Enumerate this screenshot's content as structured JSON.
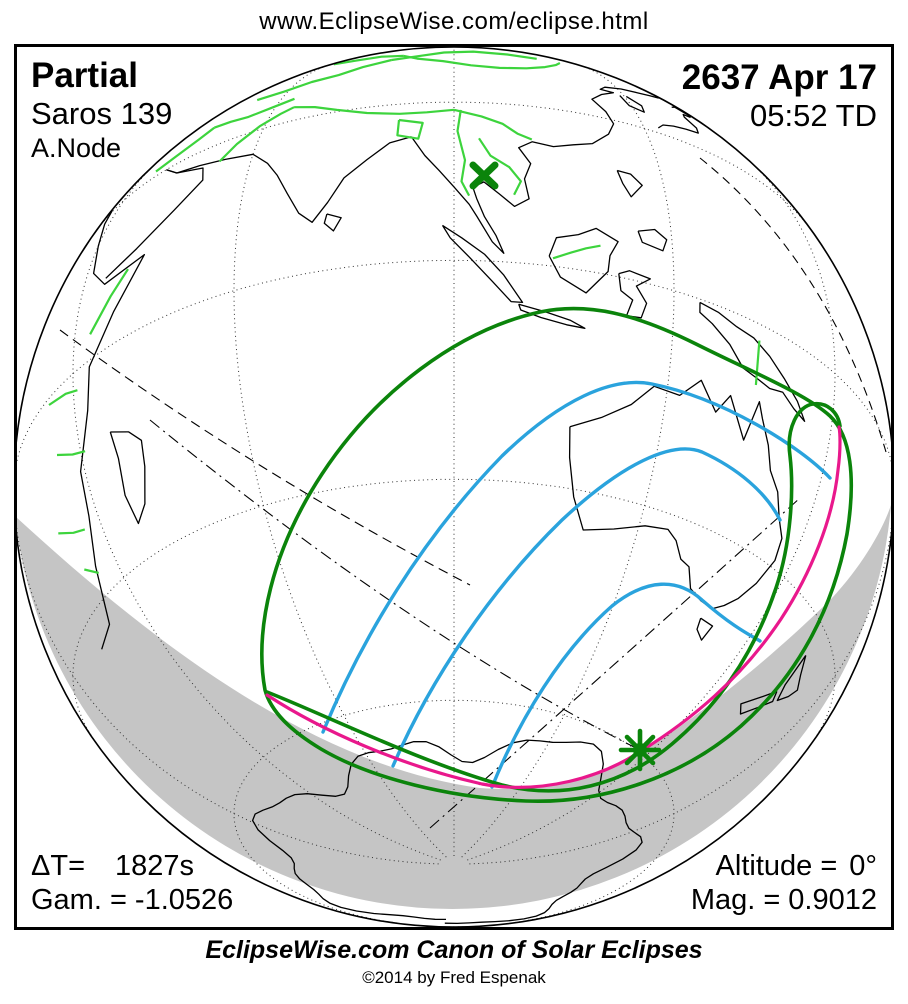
{
  "header": {
    "url": "www.EclipseWise.com/eclipse.html"
  },
  "map": {
    "eclipse_type": "Partial",
    "saros": "Saros 139",
    "node": "A.Node",
    "date": "2637 Apr 17",
    "time": "05:52 TD",
    "delta_t_label": "ΔT=",
    "delta_t_value": "1827s",
    "gamma_label": "Gam. =",
    "gamma_value": "-1.0526",
    "altitude_label": "Altitude =",
    "altitude_value": "0°",
    "magnitude_label": "Mag. =",
    "magnitude_value": "0.9012",
    "markers": {
      "greatest_eclipse": "asterisk",
      "subsolar_point": "x-cross"
    },
    "colors": {
      "coastline": "#000000",
      "political_borders": "#3dd43d",
      "penumbra_limit": "#0b840b",
      "eclipse_curves_blue": "#2aa3dd",
      "sunrise_sunset_curve": "#e9188c",
      "night_shading": "#c5c5c5",
      "graticule": "#333333",
      "globe_outline": "#000000"
    }
  },
  "footer": {
    "title": "EclipseWise.com Canon of Solar Eclipses",
    "copyright": "©2014 by Fred Espenak"
  }
}
